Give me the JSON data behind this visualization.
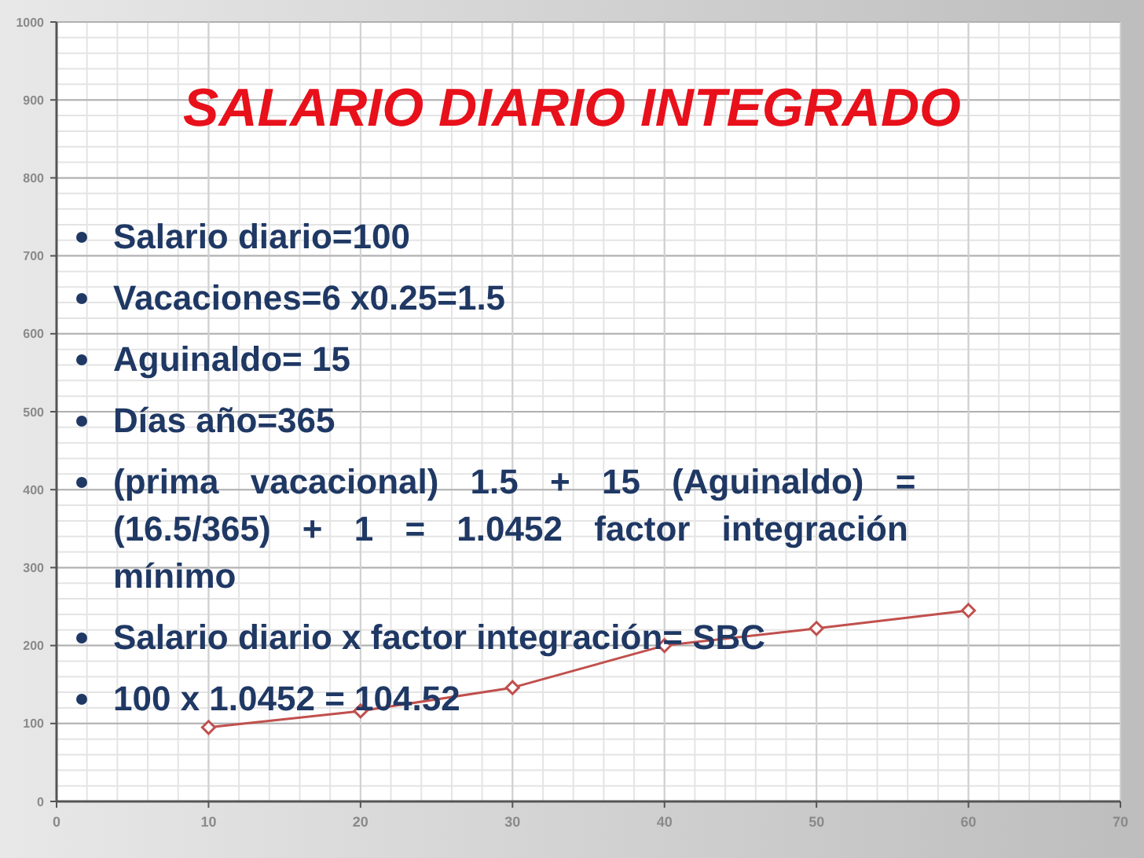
{
  "chart_data": {
    "type": "line",
    "title": "SALARIO DIARIO INTEGRADO",
    "x": [
      10,
      20,
      30,
      40,
      50,
      60
    ],
    "series": [
      {
        "color": "#c0504d",
        "values": [
          95,
          116,
          146,
          200,
          222,
          245
        ]
      }
    ],
    "xlim": [
      0,
      70
    ],
    "xticks": [
      0,
      10,
      20,
      30,
      40,
      50,
      60,
      70
    ],
    "ylim": [
      0,
      1000
    ],
    "yticks": [
      0,
      100,
      200,
      300,
      400,
      500,
      600,
      700,
      800,
      900,
      1000
    ],
    "grid": true,
    "marker": "diamond",
    "line_style": "solid",
    "annotations": [
      "Salario diario=100",
      "Vacaciones=6 x0.25=1.5",
      "Aguinaldo= 15",
      "Días año=365",
      "(prima vacacional) 1.5 + 15 (Aguinaldo) = (16.5/365) + 1 = 1.0452 factor integración mínimo",
      "Salario diario x factor integración= SBC",
      "100 x 1.0452 = 104.52"
    ]
  }
}
